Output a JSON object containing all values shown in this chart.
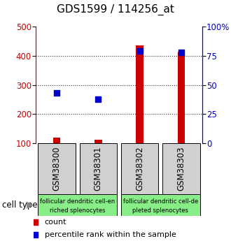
{
  "title": "GDS1599 / 114256_at",
  "samples": [
    "GSM38300",
    "GSM38301",
    "GSM38302",
    "GSM38303"
  ],
  "counts": [
    120,
    113,
    435,
    415
  ],
  "percentiles": [
    43,
    38,
    79,
    78
  ],
  "ylim_left": [
    100,
    500
  ],
  "ylim_right": [
    0,
    100
  ],
  "yticks_left": [
    100,
    200,
    300,
    400,
    500
  ],
  "yticks_right": [
    0,
    25,
    50,
    75,
    100
  ],
  "yticklabels_right": [
    "0",
    "25",
    "50",
    "75",
    "100%"
  ],
  "bar_color": "#cc0000",
  "dot_color": "#0000cc",
  "bar_width": 0.18,
  "groups": [
    {
      "label": "follicular dendritic cell-en\nriched splenocytes",
      "samples": [
        0,
        1
      ],
      "color": "#88ee88"
    },
    {
      "label": "follicular dendritic cell-de\npleted splenocytes",
      "samples": [
        2,
        3
      ],
      "color": "#88ee88"
    }
  ],
  "cell_type_label": "cell type",
  "legend_count_label": "count",
  "legend_pct_label": "percentile rank within the sample",
  "grid_color": "#333333",
  "bg_color": "#ffffff",
  "label_box_color": "#d0d0d0",
  "title_fontsize": 11,
  "tick_fontsize": 8.5,
  "sample_label_fontsize": 8.5
}
